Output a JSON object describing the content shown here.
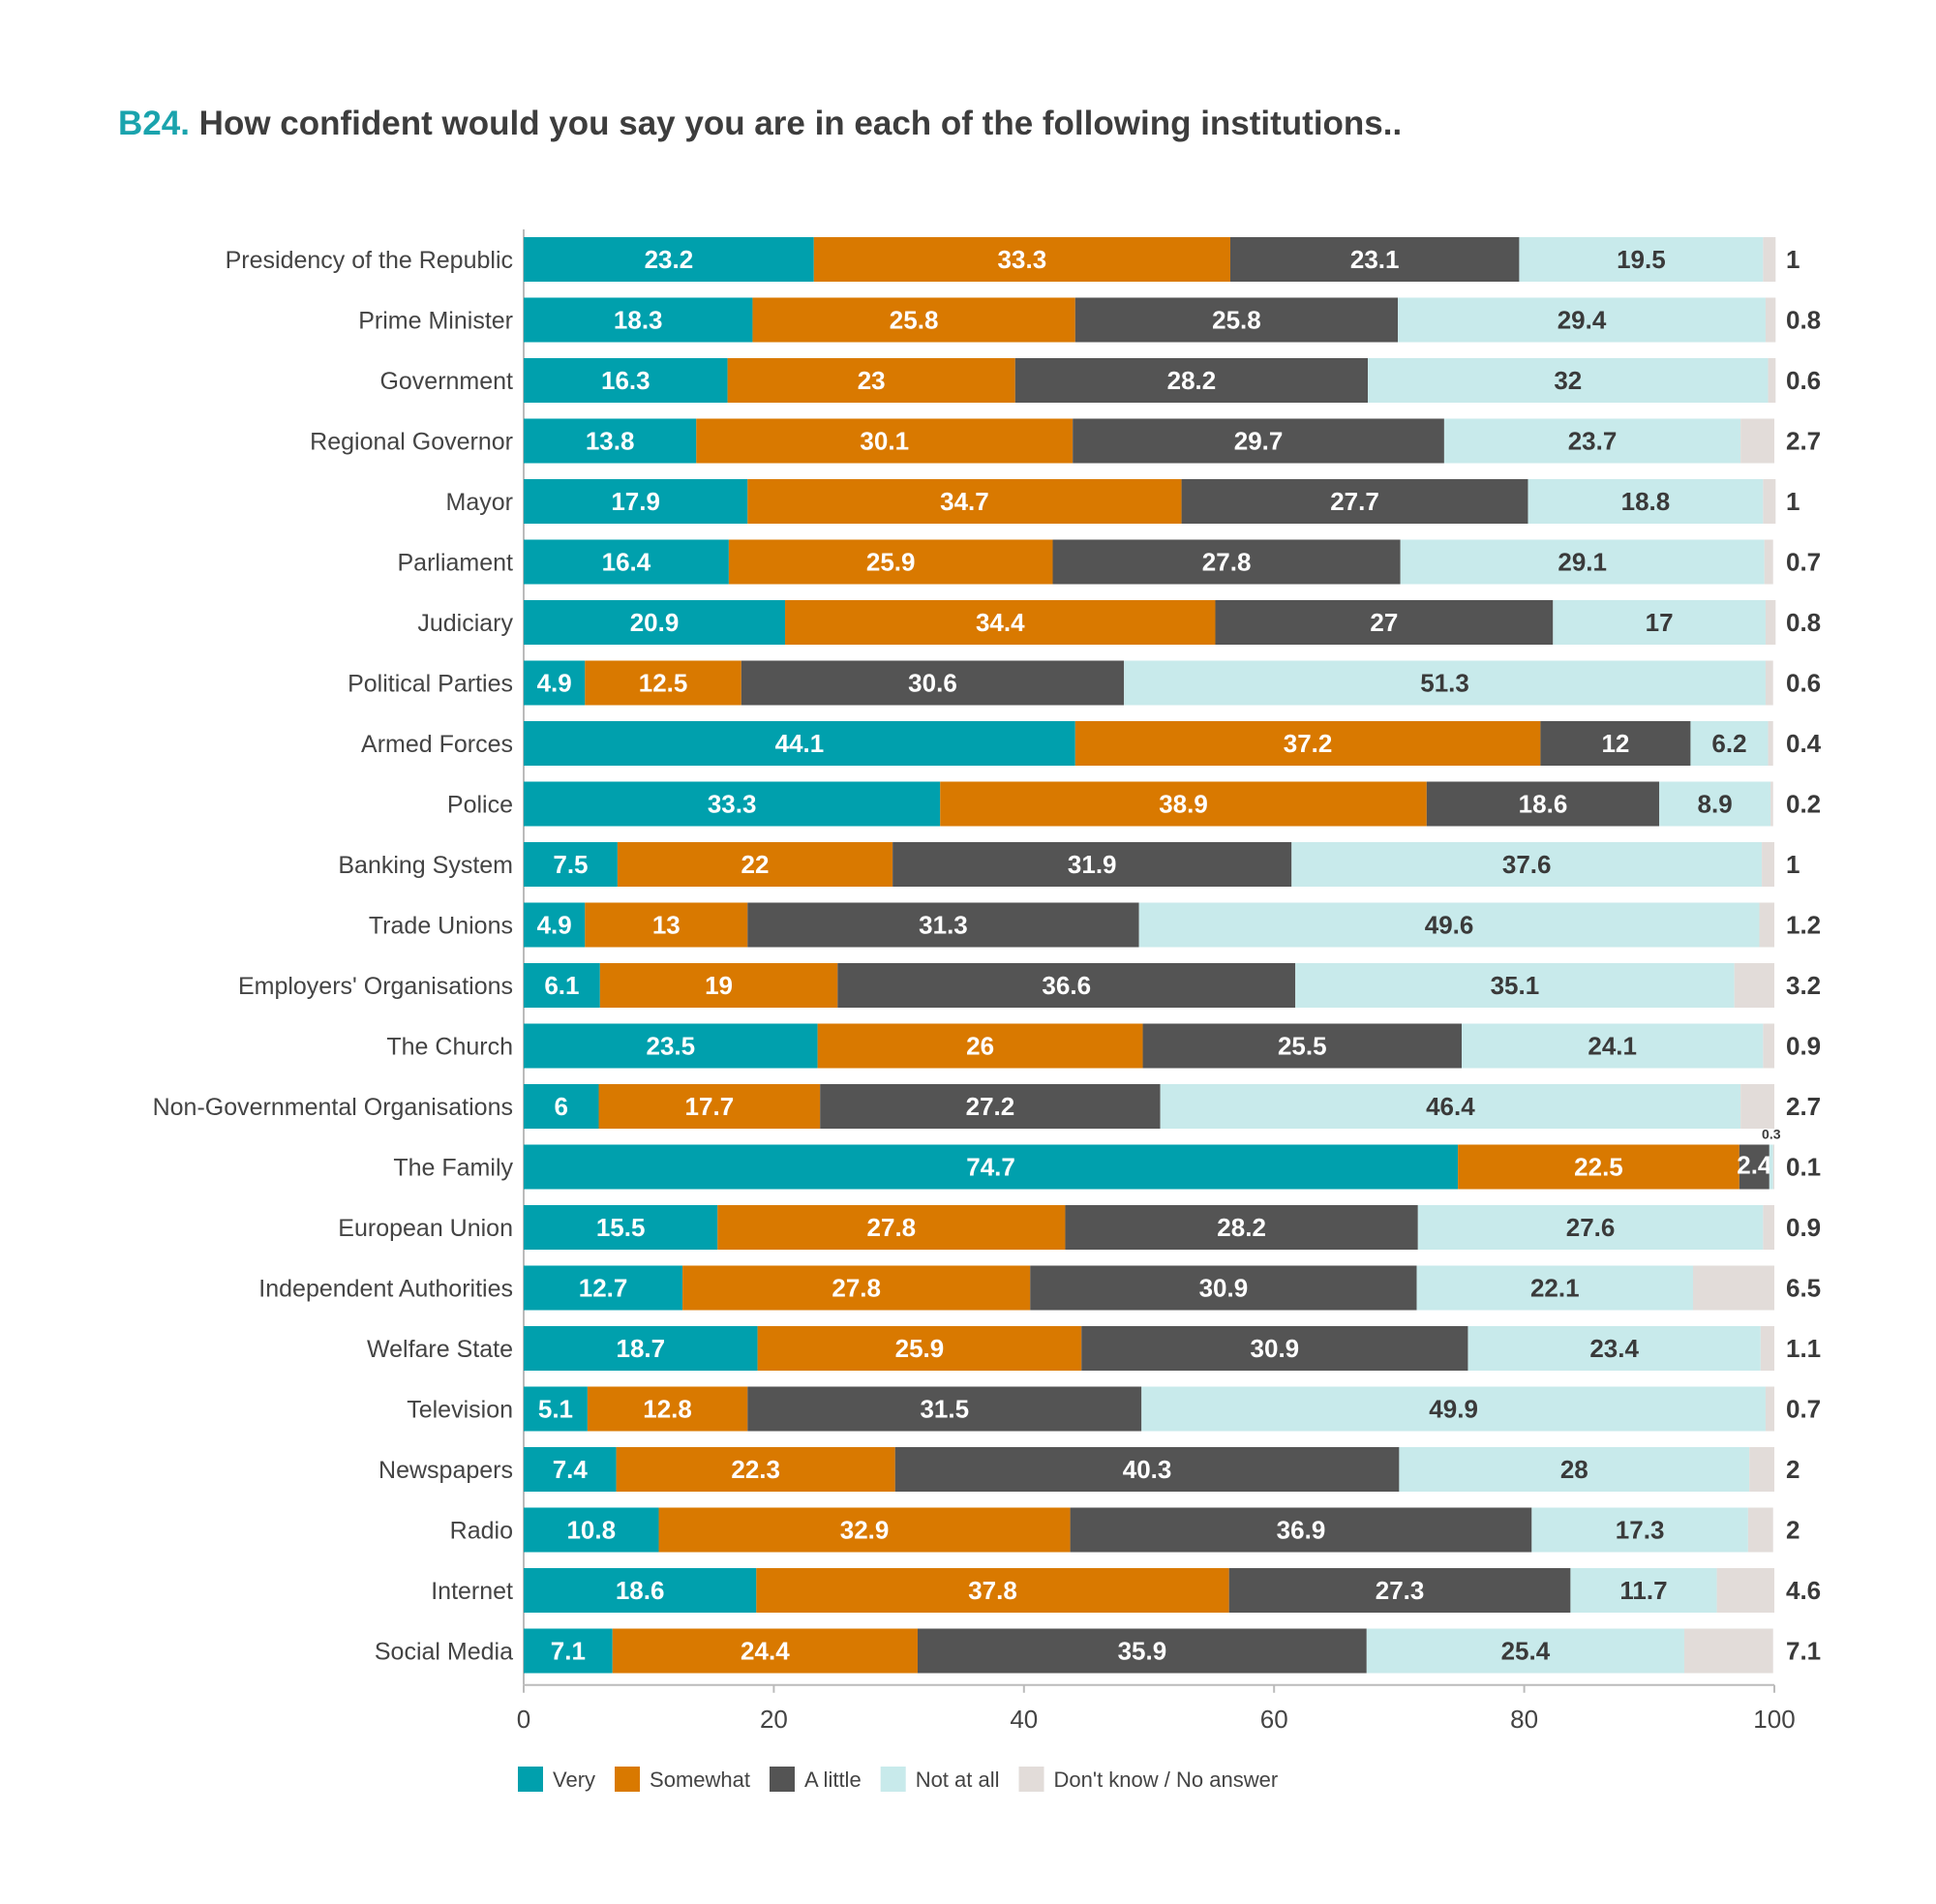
{
  "chart_data": {
    "type": "bar",
    "orientation": "horizontal",
    "stacked": true,
    "title_code": "B24.",
    "title": "How confident would you say you are in each of the following institutions..",
    "xlim": [
      0,
      100
    ],
    "xticks": [
      0,
      20,
      40,
      60,
      80,
      100
    ],
    "grid": false,
    "legend_position": "bottom-left",
    "categories": [
      "Presidency of the Republic",
      "Prime Minister",
      "Government",
      "Regional Governor",
      "Mayor",
      "Parliament",
      "Judiciary",
      "Political Parties",
      "Armed Forces",
      "Police",
      "Banking System",
      "Trade Unions",
      "Employers' Organisations",
      "The Church",
      "Non-Governmental Organisations",
      "The Family",
      "European Union",
      "Independent Authorities",
      "Welfare State",
      "Television",
      "Newspapers",
      "Radio",
      "Internet",
      "Social Media"
    ],
    "series": [
      {
        "name": "Very",
        "color": "#00a0ad",
        "label_color": "#ffffff",
        "values": [
          23.2,
          18.3,
          16.3,
          13.8,
          17.9,
          16.4,
          20.9,
          4.9,
          44.1,
          33.3,
          7.5,
          4.9,
          6.1,
          23.5,
          6,
          74.7,
          15.5,
          12.7,
          18.7,
          5.1,
          7.4,
          10.8,
          18.6,
          7.1
        ]
      },
      {
        "name": "Somewhat",
        "color": "#d97900",
        "label_color": "#ffffff",
        "values": [
          33.3,
          25.8,
          23,
          30.1,
          34.7,
          25.9,
          34.4,
          12.5,
          37.2,
          38.9,
          22,
          13,
          19,
          26,
          17.7,
          22.5,
          27.8,
          27.8,
          25.9,
          12.8,
          22.3,
          32.9,
          37.8,
          24.4
        ]
      },
      {
        "name": "A little",
        "color": "#545454",
        "label_color": "#ffffff",
        "values": [
          23.1,
          25.8,
          28.2,
          29.7,
          27.7,
          27.8,
          27,
          30.6,
          12,
          18.6,
          31.9,
          31.3,
          36.6,
          25.5,
          27.2,
          2.4,
          28.2,
          30.9,
          30.9,
          31.5,
          40.3,
          36.9,
          27.3,
          35.9
        ]
      },
      {
        "name": "Not at all",
        "color": "#c8eaeb",
        "label_color": "#3a3a3a",
        "values": [
          19.5,
          29.4,
          32,
          23.7,
          18.8,
          29.1,
          17,
          51.3,
          6.2,
          8.9,
          37.6,
          49.6,
          35.1,
          24.1,
          46.4,
          0.3,
          27.6,
          22.1,
          23.4,
          49.9,
          28,
          17.3,
          11.7,
          25.4
        ]
      },
      {
        "name": "Don't know / No answer",
        "color": "#e2dcd9",
        "label_color": "#3a3a3a",
        "values": [
          1,
          0.8,
          0.6,
          2.7,
          1,
          0.7,
          0.8,
          0.6,
          0.4,
          0.2,
          1,
          1.2,
          3.2,
          0.9,
          2.7,
          0.1,
          0.9,
          6.5,
          1.1,
          0.7,
          2,
          2,
          4.6,
          7.1
        ]
      }
    ]
  }
}
